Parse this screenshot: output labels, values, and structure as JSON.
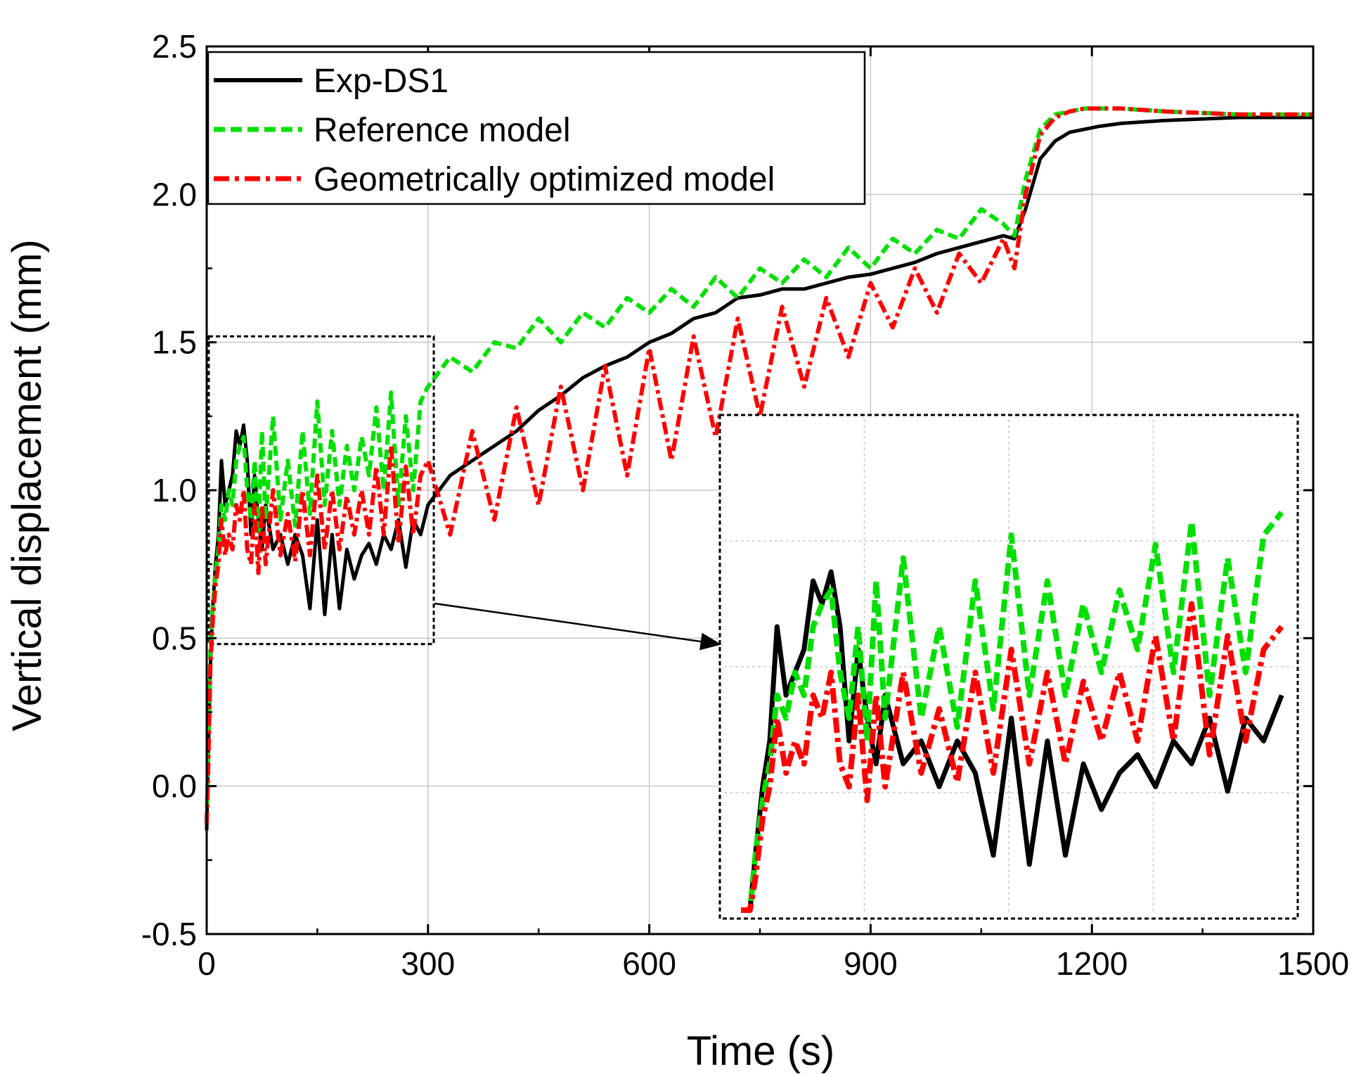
{
  "chart_data": {
    "type": "line",
    "title": "",
    "xlabel": "Time (s)",
    "ylabel": "Vertical displacement (mm)",
    "xlim": [
      0,
      1500
    ],
    "ylim": [
      -0.5,
      2.5
    ],
    "xticks": [
      0,
      300,
      600,
      900,
      1200,
      1500
    ],
    "yticks": [
      -0.5,
      0.0,
      0.5,
      1.0,
      1.5,
      2.0,
      2.5
    ],
    "xtick_labels": [
      "0",
      "300",
      "600",
      "900",
      "1200",
      "1500"
    ],
    "ytick_labels": [
      "-0.5",
      "0.0",
      "0.5",
      "1.0",
      "1.5",
      "2.0",
      "2.5"
    ],
    "grid": true,
    "legend_position": "top-left",
    "legend": [
      {
        "name": "Exp-DS1",
        "color": "#000000",
        "style": "solid"
      },
      {
        "name": "Reference model",
        "color": "#00e000",
        "style": "dash"
      },
      {
        "name": "Geometrically optimized model",
        "color": "#ff0000",
        "style": "dash-dot"
      }
    ],
    "series": [
      {
        "name": "Exp-DS1",
        "color": "#000000",
        "style": "solid",
        "x": [
          0,
          2,
          5,
          8,
          12,
          16,
          20,
          25,
          30,
          35,
          40,
          45,
          50,
          55,
          60,
          65,
          70,
          75,
          80,
          90,
          100,
          110,
          120,
          130,
          140,
          150,
          160,
          170,
          180,
          190,
          200,
          210,
          220,
          230,
          240,
          250,
          260,
          270,
          280,
          290,
          300,
          330,
          360,
          390,
          420,
          450,
          480,
          510,
          540,
          570,
          600,
          630,
          660,
          690,
          720,
          750,
          780,
          810,
          840,
          870,
          900,
          930,
          960,
          990,
          1020,
          1050,
          1080,
          1095,
          1110,
          1130,
          1150,
          1170,
          1190,
          1210,
          1240,
          1300,
          1400,
          1500
        ],
        "y": [
          -0.15,
          0.1,
          0.4,
          0.6,
          0.75,
          0.85,
          1.1,
          0.95,
          1.0,
          1.05,
          1.2,
          1.15,
          1.22,
          1.1,
          0.85,
          1.05,
          0.9,
          0.8,
          0.95,
          0.8,
          0.85,
          0.75,
          0.85,
          0.78,
          0.6,
          0.9,
          0.58,
          0.85,
          0.6,
          0.8,
          0.7,
          0.78,
          0.82,
          0.75,
          0.85,
          0.8,
          0.9,
          0.74,
          0.9,
          0.85,
          0.95,
          1.05,
          1.1,
          1.15,
          1.2,
          1.27,
          1.32,
          1.38,
          1.42,
          1.45,
          1.5,
          1.53,
          1.58,
          1.6,
          1.65,
          1.66,
          1.68,
          1.68,
          1.7,
          1.72,
          1.73,
          1.75,
          1.77,
          1.8,
          1.82,
          1.84,
          1.86,
          1.85,
          1.95,
          2.12,
          2.18,
          2.21,
          2.22,
          2.23,
          2.24,
          2.25,
          2.26,
          2.26
        ]
      },
      {
        "name": "Reference model",
        "color": "#00e000",
        "style": "dash",
        "x": [
          0,
          2,
          5,
          8,
          12,
          16,
          20,
          25,
          30,
          35,
          40,
          45,
          50,
          55,
          60,
          65,
          70,
          75,
          80,
          90,
          100,
          110,
          120,
          130,
          140,
          150,
          160,
          170,
          180,
          190,
          200,
          210,
          220,
          230,
          240,
          250,
          260,
          270,
          280,
          290,
          300,
          330,
          360,
          390,
          420,
          450,
          480,
          510,
          540,
          570,
          600,
          630,
          660,
          690,
          720,
          750,
          780,
          810,
          840,
          870,
          900,
          930,
          960,
          990,
          1020,
          1050,
          1080,
          1095,
          1110,
          1130,
          1150,
          1170,
          1190,
          1210,
          1240,
          1300,
          1400,
          1500
        ],
        "y": [
          -0.12,
          0.1,
          0.45,
          0.6,
          0.72,
          0.8,
          0.95,
          0.9,
          1.0,
          0.95,
          1.1,
          1.15,
          1.18,
          1.0,
          0.9,
          1.1,
          0.85,
          1.2,
          0.9,
          1.25,
          0.9,
          1.1,
          0.88,
          1.2,
          0.92,
          1.3,
          0.95,
          1.2,
          0.95,
          1.15,
          1.0,
          1.18,
          1.05,
          1.28,
          1.0,
          1.33,
          0.95,
          1.25,
          1.0,
          1.3,
          1.35,
          1.45,
          1.4,
          1.5,
          1.48,
          1.58,
          1.5,
          1.6,
          1.55,
          1.65,
          1.6,
          1.68,
          1.62,
          1.72,
          1.65,
          1.75,
          1.7,
          1.78,
          1.72,
          1.82,
          1.75,
          1.85,
          1.8,
          1.88,
          1.85,
          1.95,
          1.9,
          1.86,
          2.05,
          2.22,
          2.27,
          2.28,
          2.29,
          2.29,
          2.29,
          2.28,
          2.27,
          2.27
        ]
      },
      {
        "name": "Geometrically optimized model",
        "color": "#ff0000",
        "style": "dash-dot",
        "x": [
          0,
          2,
          5,
          8,
          12,
          16,
          20,
          25,
          30,
          35,
          40,
          45,
          50,
          55,
          60,
          65,
          70,
          75,
          80,
          90,
          100,
          110,
          120,
          130,
          140,
          150,
          160,
          170,
          180,
          190,
          200,
          210,
          220,
          230,
          240,
          250,
          260,
          270,
          280,
          290,
          300,
          330,
          360,
          390,
          420,
          450,
          480,
          510,
          540,
          570,
          600,
          630,
          660,
          690,
          720,
          750,
          780,
          810,
          840,
          870,
          900,
          930,
          960,
          990,
          1020,
          1050,
          1080,
          1095,
          1110,
          1130,
          1150,
          1170,
          1190,
          1210,
          1240,
          1300,
          1400,
          1500
        ],
        "y": [
          -0.13,
          0.05,
          0.4,
          0.55,
          0.68,
          0.75,
          0.9,
          0.78,
          0.85,
          0.8,
          0.95,
          0.9,
          1.0,
          0.8,
          0.75,
          0.95,
          0.72,
          0.95,
          0.75,
          1.0,
          0.78,
          0.92,
          0.76,
          1.0,
          0.78,
          1.05,
          0.8,
          1.0,
          0.8,
          0.98,
          0.85,
          1.0,
          0.85,
          1.08,
          0.85,
          1.15,
          0.82,
          1.08,
          0.85,
          1.05,
          1.1,
          0.85,
          1.2,
          0.9,
          1.28,
          0.95,
          1.35,
          1.0,
          1.42,
          1.05,
          1.48,
          1.1,
          1.52,
          1.18,
          1.58,
          1.25,
          1.62,
          1.35,
          1.65,
          1.45,
          1.7,
          1.55,
          1.75,
          1.6,
          1.8,
          1.7,
          1.85,
          1.75,
          2.0,
          2.2,
          2.26,
          2.28,
          2.29,
          2.29,
          2.29,
          2.28,
          2.27,
          2.27
        ]
      }
    ],
    "inset": {
      "source_range": {
        "x": [
          0,
          305
        ],
        "y": [
          0.48,
          1.52
        ]
      },
      "description_arrow": true
    }
  }
}
